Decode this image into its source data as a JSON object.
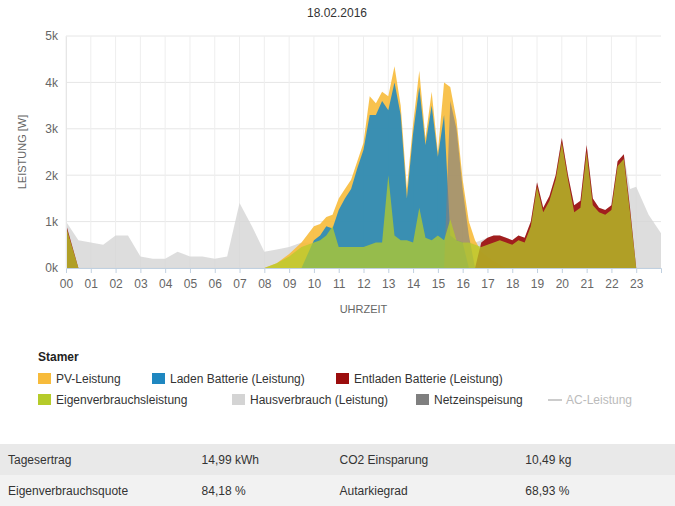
{
  "chart_data": {
    "type": "area",
    "title": "18.02.2016",
    "x_label": "UHRZEIT",
    "y_label": "LEISTUNG [W]",
    "legend_title": "Stamer",
    "legend": "bottom",
    "grid": true,
    "stacked": false,
    "xlim": [
      0,
      24
    ],
    "ylim": [
      0,
      5000
    ],
    "xticks": [
      {
        "value": 0,
        "label": "00"
      },
      {
        "value": 1,
        "label": "01"
      },
      {
        "value": 2,
        "label": "02"
      },
      {
        "value": 3,
        "label": "03"
      },
      {
        "value": 4,
        "label": "04"
      },
      {
        "value": 5,
        "label": "05"
      },
      {
        "value": 6,
        "label": "06"
      },
      {
        "value": 7,
        "label": "07"
      },
      {
        "value": 8,
        "label": "08"
      },
      {
        "value": 9,
        "label": "09"
      },
      {
        "value": 10,
        "label": "10"
      },
      {
        "value": 11,
        "label": "11"
      },
      {
        "value": 12,
        "label": "12"
      },
      {
        "value": 13,
        "label": "13"
      },
      {
        "value": 14,
        "label": "14"
      },
      {
        "value": 15,
        "label": "15"
      },
      {
        "value": 16,
        "label": "16"
      },
      {
        "value": 17,
        "label": "17"
      },
      {
        "value": 18,
        "label": "18"
      },
      {
        "value": 19,
        "label": "19"
      },
      {
        "value": 20,
        "label": "20"
      },
      {
        "value": 21,
        "label": "21"
      },
      {
        "value": 22,
        "label": "22"
      },
      {
        "value": 23,
        "label": "23"
      }
    ],
    "yticks": [
      {
        "value": 0,
        "label": "0k"
      },
      {
        "value": 1000,
        "label": "1k"
      },
      {
        "value": 2000,
        "label": "2k"
      },
      {
        "value": 3000,
        "label": "3k"
      },
      {
        "value": 4000,
        "label": "4k"
      },
      {
        "value": 5000,
        "label": "5k"
      }
    ],
    "x": [
      0,
      0.5,
      1,
      1.5,
      2,
      2.5,
      3,
      3.5,
      4,
      4.5,
      5,
      5.5,
      6,
      6.5,
      7,
      7.5,
      8,
      8.5,
      9,
      9.5,
      10,
      10.25,
      10.5,
      10.75,
      11,
      11.25,
      11.5,
      11.75,
      12,
      12.25,
      12.5,
      12.75,
      13,
      13.25,
      13.5,
      13.75,
      14,
      14.25,
      14.5,
      14.75,
      15,
      15.25,
      15.5,
      15.75,
      16,
      16.25,
      16.5,
      16.75,
      17,
      17.25,
      17.5,
      17.75,
      18,
      18.25,
      18.5,
      18.75,
      19,
      19.25,
      19.5,
      19.75,
      20,
      20.25,
      20.5,
      20.75,
      21,
      21.25,
      21.5,
      21.75,
      22,
      22.25,
      22.5,
      22.75,
      23,
      23.5,
      24
    ],
    "series": [
      {
        "name": "PV-Leistung",
        "color": "#f7bb3b",
        "values": [
          0,
          0,
          0,
          0,
          0,
          0,
          0,
          0,
          0,
          0,
          0,
          0,
          0,
          0,
          0,
          0,
          0,
          100,
          300,
          550,
          900,
          950,
          1100,
          1150,
          1500,
          1700,
          1900,
          2300,
          2700,
          3700,
          3550,
          3800,
          3700,
          4350,
          3500,
          1700,
          3100,
          4250,
          2800,
          3800,
          2500,
          4000,
          3900,
          3200,
          1900,
          1000,
          600,
          350,
          250,
          150,
          80,
          0,
          0,
          0,
          0,
          0,
          0,
          0,
          0,
          0,
          0,
          0,
          0,
          0,
          0,
          0,
          0,
          0,
          0,
          0,
          0,
          0,
          0,
          0,
          0
        ]
      },
      {
        "name": "Laden Batterie (Leistung)",
        "color": "#1f87c0",
        "values": [
          0,
          0,
          0,
          0,
          0,
          0,
          0,
          0,
          0,
          0,
          0,
          0,
          0,
          0,
          0,
          0,
          0,
          0,
          0,
          0,
          600,
          700,
          900,
          850,
          1250,
          1500,
          1700,
          2150,
          2550,
          3300,
          3300,
          3600,
          3400,
          4000,
          3300,
          1500,
          2900,
          3900,
          2650,
          3500,
          2400,
          3300,
          700,
          600,
          550,
          0,
          0,
          0,
          0,
          0,
          0,
          0,
          0,
          0,
          0,
          0,
          0,
          0,
          0,
          0,
          0,
          0,
          0,
          0,
          0,
          0,
          0,
          0,
          0,
          0,
          0,
          0,
          0,
          0,
          0
        ]
      },
      {
        "name": "Entladen Batterie (Leistung)",
        "color": "#9b0d0d",
        "values": [
          950,
          0,
          0,
          0,
          0,
          0,
          0,
          0,
          0,
          0,
          0,
          0,
          0,
          0,
          0,
          0,
          0,
          0,
          0,
          0,
          0,
          0,
          0,
          0,
          0,
          0,
          0,
          0,
          0,
          0,
          0,
          0,
          0,
          0,
          0,
          0,
          0,
          0,
          0,
          0,
          0,
          0,
          0,
          0,
          0,
          0,
          0,
          550,
          650,
          700,
          700,
          650,
          600,
          700,
          650,
          1000,
          1850,
          1300,
          1550,
          2000,
          2800,
          2000,
          1350,
          1450,
          2650,
          1500,
          1300,
          1250,
          1350,
          2300,
          2450,
          1300,
          0,
          0,
          0
        ]
      },
      {
        "name": "Eigenverbrauchsleistung",
        "color": "#b5cb2a",
        "values": [
          900,
          0,
          0,
          0,
          0,
          0,
          0,
          0,
          0,
          0,
          0,
          0,
          0,
          0,
          0,
          0,
          0,
          100,
          250,
          450,
          550,
          600,
          700,
          900,
          450,
          450,
          450,
          450,
          450,
          500,
          550,
          550,
          2000,
          700,
          600,
          600,
          550,
          1300,
          650,
          600,
          700,
          600,
          1050,
          600,
          550,
          550,
          500,
          450,
          500,
          550,
          600,
          550,
          500,
          600,
          550,
          900,
          1750,
          1200,
          1450,
          1900,
          2700,
          1900,
          1200,
          1300,
          2500,
          1350,
          1200,
          1150,
          1250,
          2200,
          2350,
          1200,
          0,
          0,
          0
        ]
      },
      {
        "name": "Hausverbrauch (Leistung)",
        "color": "#d4d4d4",
        "values": [
          1000,
          600,
          550,
          500,
          700,
          700,
          250,
          200,
          200,
          350,
          250,
          250,
          200,
          250,
          1400,
          900,
          350,
          400,
          450,
          550,
          550,
          600,
          700,
          900,
          450,
          450,
          450,
          450,
          450,
          500,
          550,
          550,
          2000,
          700,
          600,
          600,
          550,
          1300,
          650,
          600,
          700,
          600,
          1050,
          600,
          550,
          550,
          550,
          600,
          650,
          700,
          700,
          650,
          600,
          700,
          650,
          1000,
          1850,
          1300,
          1550,
          2000,
          2800,
          2000,
          1350,
          1450,
          2650,
          1500,
          1300,
          1250,
          1350,
          2300,
          2450,
          1700,
          1750,
          1150,
          750
        ]
      },
      {
        "name": "Netzeinspeisung",
        "color": "#7f7f7f",
        "values": [
          0,
          0,
          0,
          0,
          0,
          0,
          0,
          0,
          0,
          0,
          0,
          0,
          0,
          0,
          0,
          0,
          0,
          0,
          0,
          0,
          0,
          0,
          0,
          0,
          0,
          0,
          0,
          0,
          0,
          0,
          0,
          0,
          0,
          0,
          0,
          0,
          0,
          0,
          0,
          0,
          0,
          0,
          3600,
          3000,
          1700,
          700,
          0,
          0,
          0,
          0,
          0,
          0,
          0,
          0,
          0,
          0,
          0,
          0,
          0,
          0,
          0,
          0,
          0,
          0,
          0,
          0,
          0,
          0,
          0,
          0,
          0,
          0,
          0,
          0,
          0
        ]
      },
      {
        "name": "AC-Leistung",
        "color": "#cccccc",
        "type": "line",
        "values": [
          null,
          null,
          null,
          null,
          null,
          null,
          null,
          null,
          null,
          null,
          null,
          null,
          null,
          null,
          null,
          null,
          null,
          null,
          null,
          null,
          null,
          null,
          null,
          null,
          null,
          null,
          null,
          null,
          null,
          null,
          null,
          null,
          null,
          null,
          null,
          null,
          null,
          null,
          null,
          null,
          null,
          null,
          null,
          null,
          null,
          null,
          null,
          null,
          null,
          null,
          null,
          null,
          null,
          null,
          null,
          null,
          null,
          null,
          null,
          null,
          null,
          null,
          null,
          null,
          null,
          null,
          null,
          null,
          null,
          null,
          null,
          null,
          null,
          null,
          null
        ]
      }
    ]
  },
  "summary": [
    [
      "Tagesertrag",
      "14,99 kWh",
      "CO2 Einsparung",
      "10,49 kg"
    ],
    [
      "Eigenverbrauchsquote",
      "84,18 %",
      "Autarkiegrad",
      "68,93 %"
    ]
  ]
}
